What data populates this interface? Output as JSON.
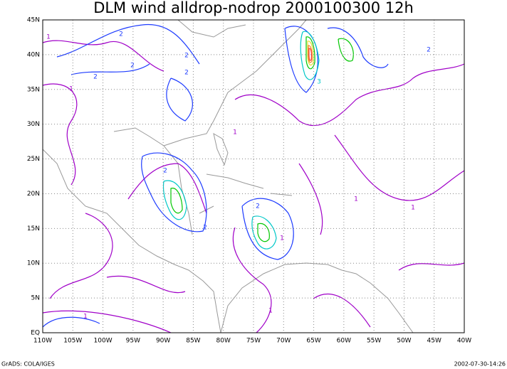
{
  "map": {
    "title": "DLM wind alldrop-nodrop 2000100300 12h",
    "lon_labels": [
      "110W",
      "105W",
      "100W",
      "95W",
      "90W",
      "85W",
      "80W",
      "75W",
      "70W",
      "65W",
      "60W",
      "55W",
      "50W",
      "45W",
      "40W"
    ],
    "lat_labels": [
      "EQ",
      "5N",
      "10N",
      "15N",
      "20N",
      "25N",
      "30N",
      "35N",
      "40N",
      "45N"
    ],
    "contour_labels": [
      "1",
      "2",
      "2",
      "2",
      "2",
      "1",
      "1",
      "2",
      "3",
      "2",
      "2",
      "1",
      "1",
      "2",
      "1",
      "1",
      "1",
      "2"
    ]
  },
  "footer": {
    "left": "GrADS: COLA/IGES",
    "right": "2002-07-30-14:26"
  }
}
